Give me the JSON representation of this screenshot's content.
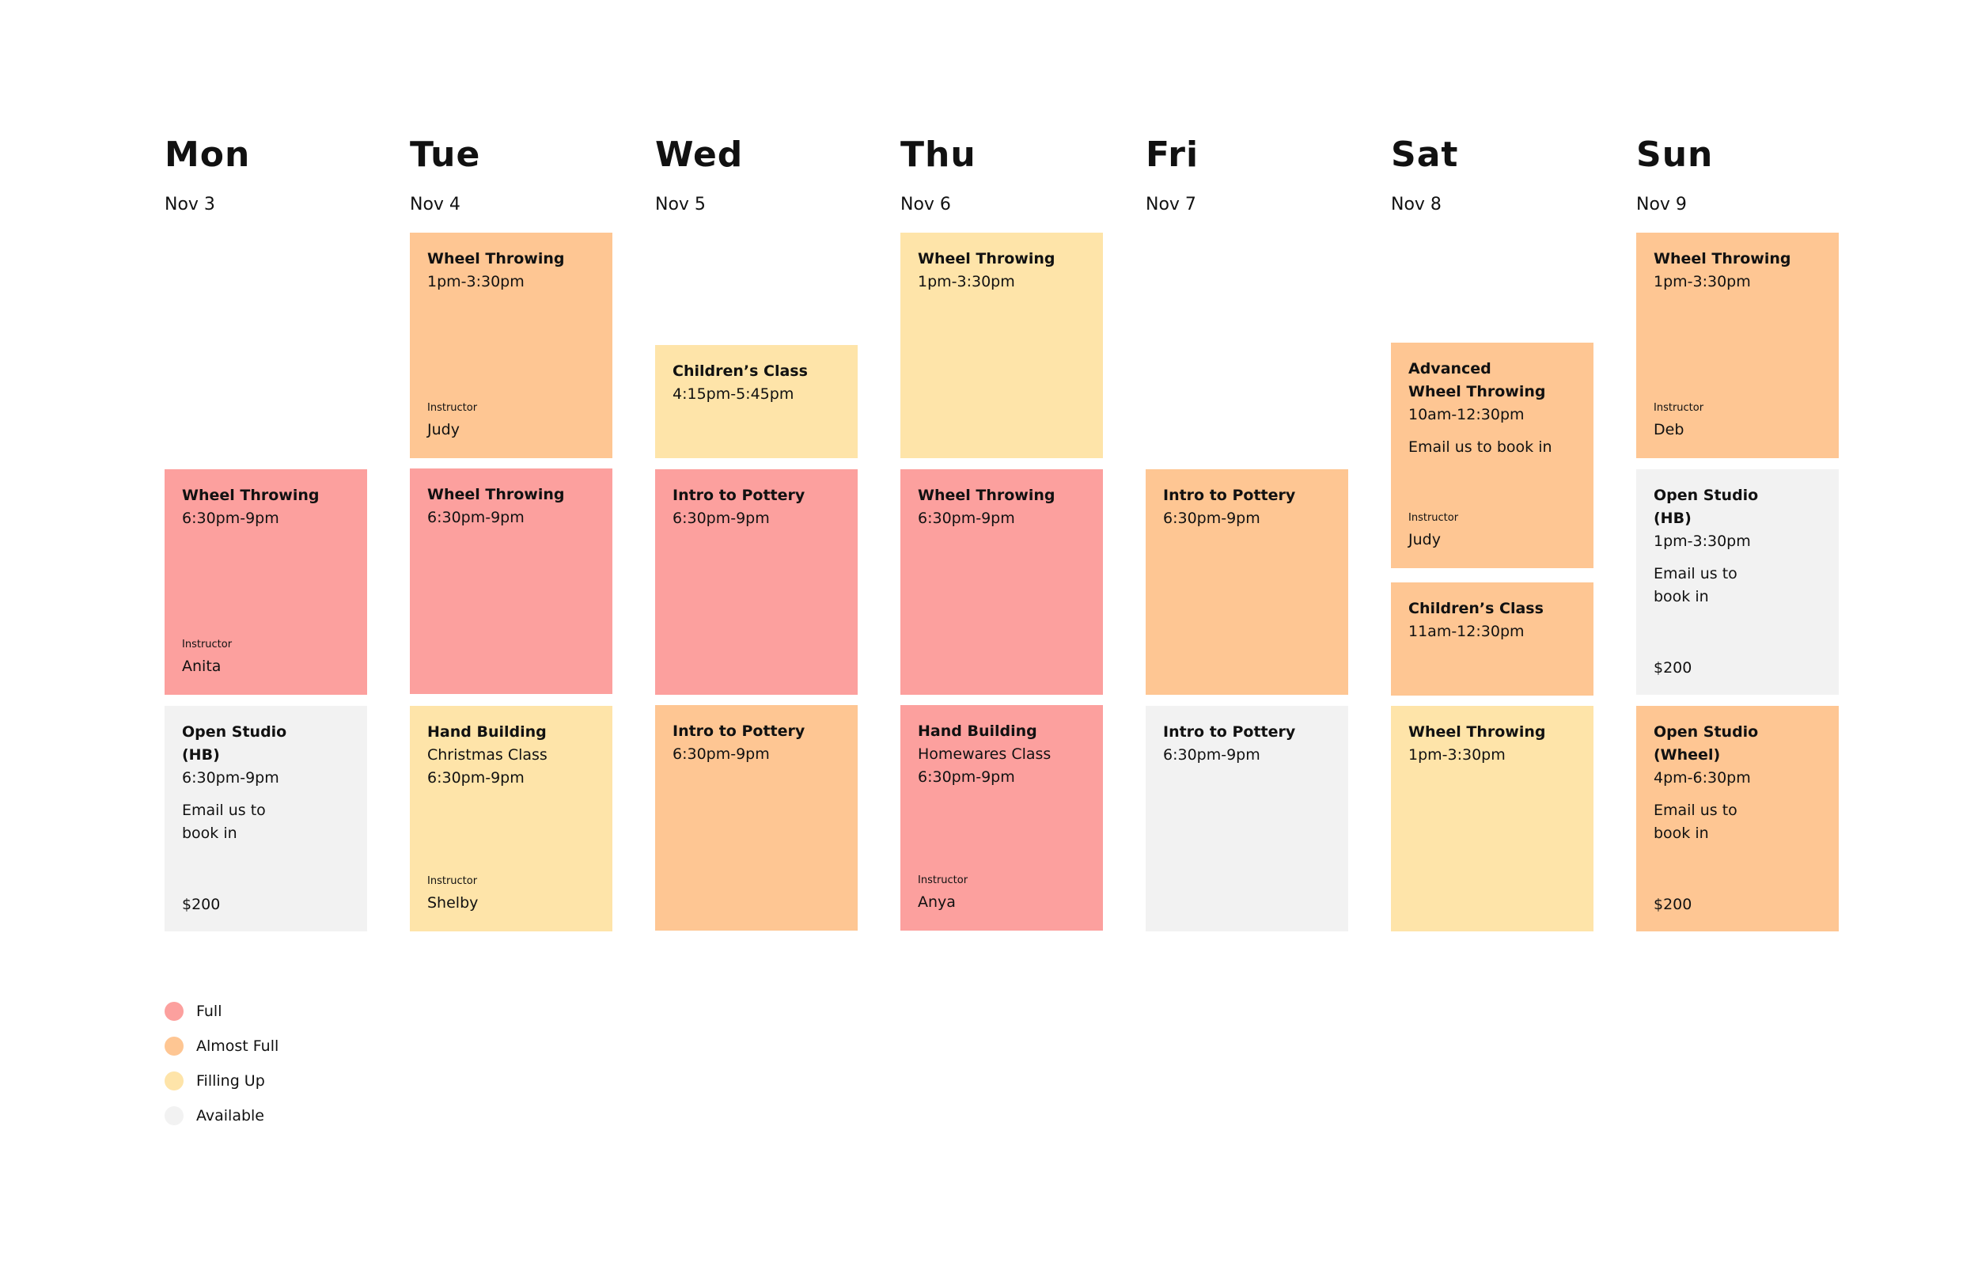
{
  "days": [
    {
      "name": "Mon",
      "date": "Nov 3"
    },
    {
      "name": "Tue",
      "date": "Nov 4"
    },
    {
      "name": "Wed",
      "date": "Nov 5"
    },
    {
      "name": "Thu",
      "date": "Nov 6"
    },
    {
      "name": "Fri",
      "date": "Nov 7"
    },
    {
      "name": "Sat",
      "date": "Nov 8"
    },
    {
      "name": "Sun",
      "date": "Nov 9"
    }
  ],
  "instructor_label": "Instructor",
  "classes": {
    "mon_1": {
      "title": "Wheel Throwing",
      "time": "6:30pm-9pm",
      "instructor": "Anita",
      "status": "full"
    },
    "mon_2": {
      "title": "Open Studio\n(HB)",
      "time": "6:30pm-9pm",
      "note": "Email us to\nbook in",
      "price": "$200",
      "status": "available"
    },
    "tue_1": {
      "title": "Wheel Throwing",
      "time": "1pm-3:30pm",
      "instructor": "Judy",
      "status": "almost_full"
    },
    "tue_2": {
      "title": "Wheel Throwing",
      "time": "6:30pm-9pm",
      "status": "full"
    },
    "tue_3": {
      "title": "Hand Building",
      "subtitle": "Christmas Class",
      "time": "6:30pm-9pm",
      "instructor": "Shelby",
      "status": "filling_up"
    },
    "wed_1": {
      "title": "Children’s Class",
      "time": "4:15pm-5:45pm",
      "status": "filling_up"
    },
    "wed_2": {
      "title": "Intro to Pottery",
      "time": "6:30pm-9pm",
      "status": "full"
    },
    "wed_3": {
      "title": "Intro to Pottery",
      "time": "6:30pm-9pm",
      "status": "almost_full"
    },
    "thu_1": {
      "title": "Wheel Throwing",
      "time": "1pm-3:30pm",
      "status": "filling_up"
    },
    "thu_2": {
      "title": "Wheel Throwing",
      "time": "6:30pm-9pm",
      "status": "full"
    },
    "thu_3": {
      "title": "Hand Building",
      "subtitle": "Homewares Class",
      "time": "6:30pm-9pm",
      "instructor": "Anya",
      "status": "full"
    },
    "fri_1": {
      "title": "Intro to Pottery",
      "time": "6:30pm-9pm",
      "status": "almost_full"
    },
    "fri_2": {
      "title": "Intro to Pottery",
      "time": "6:30pm-9pm",
      "status": "available"
    },
    "sat_1": {
      "title": "Advanced\nWheel Throwing",
      "time": "10am-12:30pm",
      "note": "Email us to book in",
      "instructor": "Judy",
      "status": "almost_full"
    },
    "sat_2": {
      "title": "Children’s Class",
      "time": "11am-12:30pm",
      "status": "almost_full"
    },
    "sat_3": {
      "title": "Wheel Throwing",
      "time": "1pm-3:30pm",
      "status": "filling_up"
    },
    "sun_1": {
      "title": "Wheel Throwing",
      "time": "1pm-3:30pm",
      "instructor": "Deb",
      "status": "almost_full"
    },
    "sun_2": {
      "title": "Open Studio\n(HB)",
      "time": "1pm-3:30pm",
      "note": "Email us to\nbook in",
      "price": "$200",
      "status": "available"
    },
    "sun_3": {
      "title": "Open Studio\n(Wheel)",
      "time": "4pm-6:30pm",
      "note": "Email us to\nbook in",
      "price": "$200",
      "status": "almost_full"
    }
  },
  "legend": [
    {
      "label": "Full",
      "color": "#fca09e"
    },
    {
      "label": "Almost Full",
      "color": "#fec693"
    },
    {
      "label": "Filling Up",
      "color": "#fee4a9"
    },
    {
      "label": "Available",
      "color": "#f2f2f2"
    }
  ]
}
